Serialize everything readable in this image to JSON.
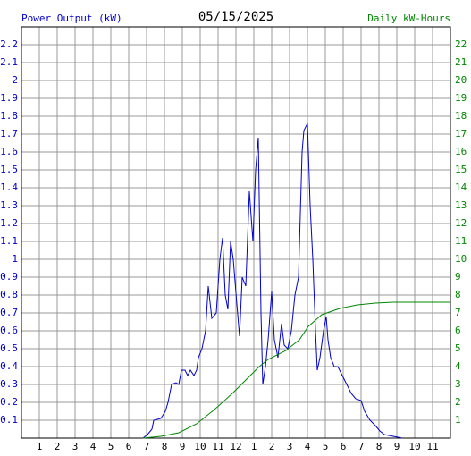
{
  "chart_data": {
    "type": "line",
    "title": "05/15/2025",
    "y_label": "Power Output (kW)",
    "y2_label": "Daily kW-Hours",
    "grid": true,
    "xlim": [
      0,
      24
    ],
    "xticks": [
      1,
      2,
      3,
      4,
      5,
      6,
      7,
      8,
      9,
      10,
      11,
      12,
      {
        "value": 13,
        "label": "1"
      },
      {
        "value": 14,
        "label": "2"
      },
      {
        "value": 15,
        "label": "3"
      },
      {
        "value": 16,
        "label": "4"
      },
      {
        "value": 17,
        "label": "5"
      },
      {
        "value": 18,
        "label": "6"
      },
      {
        "value": 19,
        "label": "7"
      },
      {
        "value": 20,
        "label": "8"
      },
      {
        "value": 21,
        "label": "9"
      },
      {
        "value": 22,
        "label": "10"
      },
      {
        "value": 23,
        "label": "11"
      }
    ],
    "ylim": [
      0,
      2.3
    ],
    "yticks": [
      0.1,
      0.2,
      0.3,
      0.4,
      0.5,
      0.6,
      0.7,
      0.8,
      0.9,
      1.0,
      1.1,
      1.2,
      1.3,
      1.4,
      1.5,
      1.6,
      1.7,
      1.8,
      1.9,
      2.0,
      2.1,
      2.2
    ],
    "y2lim": [
      0,
      23
    ],
    "y2ticks": [
      1,
      2,
      3,
      4,
      5,
      6,
      7,
      8,
      9,
      10,
      11,
      12,
      13,
      14,
      15,
      16,
      17,
      18,
      19,
      20,
      21,
      22
    ],
    "series": [
      {
        "name": "Power Output (kW)",
        "color": "#0000cc",
        "x": [
          6.8,
          7.05,
          7.3,
          7.4,
          7.8,
          8.05,
          8.2,
          8.4,
          8.65,
          8.8,
          8.95,
          9.15,
          9.3,
          9.45,
          9.65,
          9.8,
          9.9,
          10.1,
          10.3,
          10.45,
          10.65,
          10.9,
          11.1,
          11.25,
          11.4,
          11.55,
          11.7,
          11.85,
          12.05,
          12.2,
          12.35,
          12.55,
          12.75,
          12.95,
          13.1,
          13.25,
          13.4,
          13.5,
          13.65,
          13.8,
          14.0,
          14.15,
          14.35,
          14.55,
          14.7,
          14.9,
          15.1,
          15.3,
          15.5,
          15.7,
          15.8,
          16.0,
          16.15,
          16.3,
          16.45,
          16.55,
          16.7,
          16.9,
          17.05,
          17.15,
          17.3,
          17.5,
          17.7,
          17.95,
          18.2,
          18.45,
          18.7,
          19.0,
          19.2,
          19.5,
          19.8,
          20.05,
          20.3,
          20.8,
          21.3
        ],
        "values": [
          0,
          0.02,
          0.05,
          0.1,
          0.11,
          0.15,
          0.2,
          0.3,
          0.31,
          0.3,
          0.38,
          0.38,
          0.35,
          0.38,
          0.35,
          0.38,
          0.45,
          0.5,
          0.6,
          0.85,
          0.67,
          0.7,
          1.0,
          1.12,
          0.8,
          0.72,
          1.1,
          1.0,
          0.75,
          0.57,
          0.9,
          0.85,
          1.38,
          1.1,
          1.5,
          1.68,
          0.7,
          0.3,
          0.4,
          0.55,
          0.82,
          0.55,
          0.45,
          0.64,
          0.52,
          0.5,
          0.6,
          0.8,
          0.9,
          1.6,
          1.72,
          1.76,
          1.3,
          1.0,
          0.6,
          0.38,
          0.45,
          0.6,
          0.68,
          0.55,
          0.45,
          0.4,
          0.4,
          0.35,
          0.3,
          0.25,
          0.22,
          0.21,
          0.15,
          0.1,
          0.07,
          0.04,
          0.02,
          0.01,
          0
        ]
      },
      {
        "name": "Daily kW-Hours",
        "color": "#008800",
        "axis": "y2",
        "x": [
          6.8,
          7.8,
          8.8,
          9.8,
          10.8,
          11.8,
          12.8,
          13.3,
          13.8,
          14.8,
          15.55,
          16.05,
          16.8,
          17.8,
          18.8,
          19.8,
          20.8,
          24
        ],
        "values": [
          0,
          0.1,
          0.3,
          0.8,
          1.6,
          2.5,
          3.5,
          4.0,
          4.4,
          4.9,
          5.5,
          6.25,
          6.9,
          7.25,
          7.45,
          7.55,
          7.6,
          7.6
        ]
      }
    ]
  }
}
